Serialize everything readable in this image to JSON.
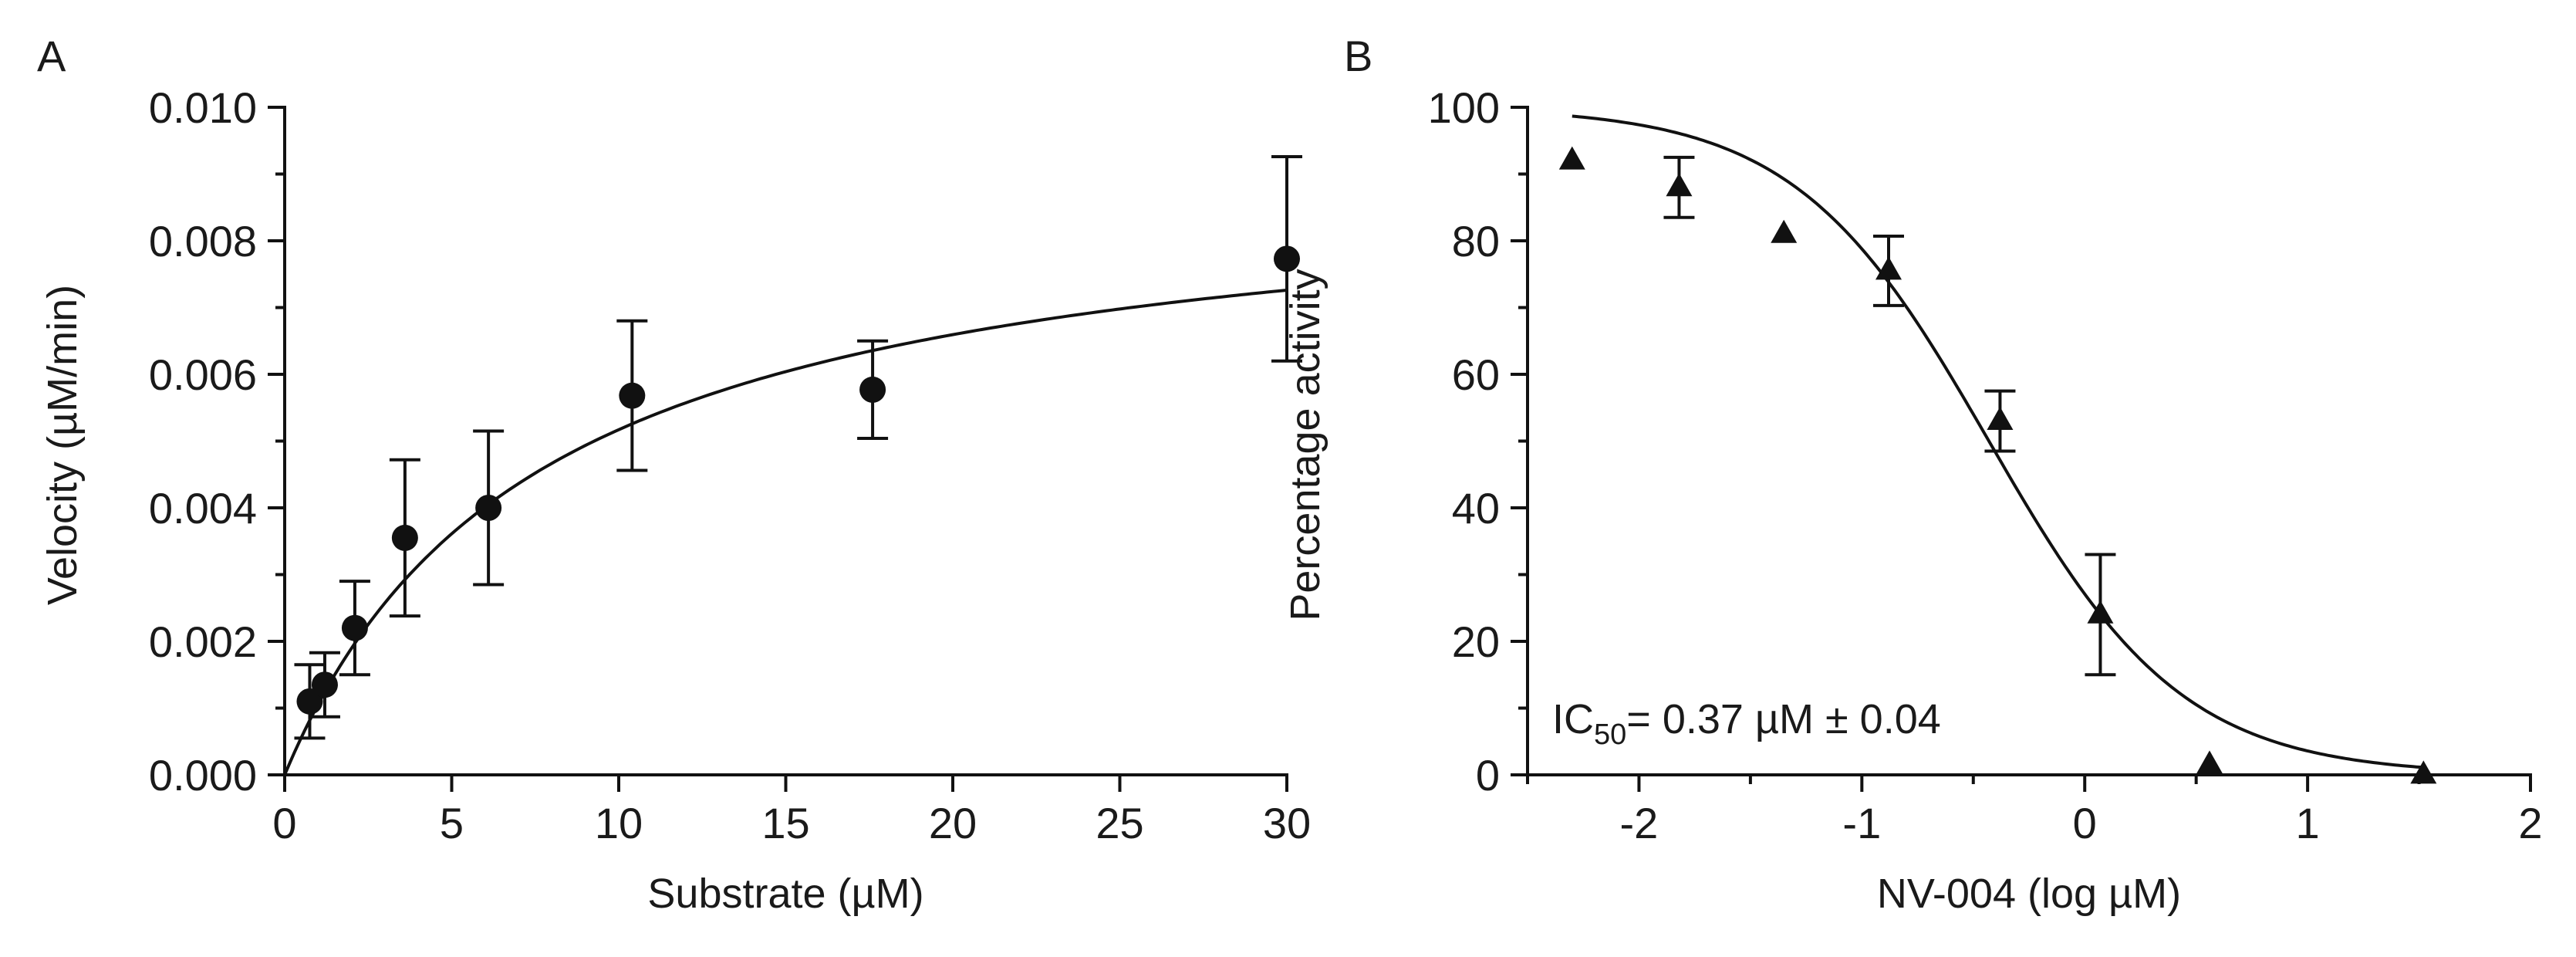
{
  "chart_data": [
    {
      "panel": "A",
      "type": "scatter",
      "xlabel": "Substrate (µM)",
      "ylabel": "Velocity (µM/min)",
      "xlim": [
        0,
        30
      ],
      "ylim": [
        0,
        0.01
      ],
      "xticks": [
        0,
        5,
        10,
        15,
        20,
        25,
        30
      ],
      "xtick_labels": [
        "0",
        "5",
        "10",
        "15",
        "20",
        "25",
        "30"
      ],
      "yticks": [
        0.0,
        0.002,
        0.004,
        0.006,
        0.008,
        0.01
      ],
      "ytick_labels": [
        "0.000",
        "0.002",
        "0.004",
        "0.006",
        "0.008",
        "0.010"
      ],
      "grid": false,
      "series": [
        {
          "name": "Velocity",
          "marker": "circle",
          "x": [
            0.75,
            1.2,
            2.1,
            3.6,
            6.1,
            10.4,
            17.6,
            30.0
          ],
          "y": [
            0.0011,
            0.00135,
            0.0022,
            0.00355,
            0.004,
            0.00568,
            0.00577,
            0.00773
          ],
          "err": [
            0.00055,
            0.00048,
            0.0007,
            0.00117,
            0.00115,
            0.00112,
            0.00073,
            0.00153
          ]
        }
      ],
      "fit": {
        "model": "michaelis-menten",
        "vmax": 0.0091,
        "km": 7.6
      }
    },
    {
      "panel": "B",
      "type": "scatter",
      "xlabel": "NV-004 (log µM)",
      "ylabel": "Percentage activity",
      "xlim": [
        -2.5,
        2
      ],
      "ylim": [
        0,
        100
      ],
      "xticks": [
        -2,
        -1,
        0,
        1,
        2
      ],
      "xtick_labels": [
        "-2",
        "-1",
        "0",
        "1",
        "2"
      ],
      "yticks": [
        0,
        20,
        40,
        60,
        80,
        100
      ],
      "ytick_labels": [
        "0",
        "20",
        "40",
        "60",
        "80",
        "100"
      ],
      "grid": false,
      "series": [
        {
          "name": "Percentage activity",
          "marker": "triangle",
          "x": [
            -2.3,
            -1.82,
            -1.35,
            -0.88,
            -0.38,
            0.07,
            0.56,
            1.52
          ],
          "y": [
            92,
            88,
            81,
            75.5,
            53,
            24,
            1.5,
            0
          ],
          "err": [
            0,
            4.5,
            0,
            5.2,
            4.5,
            9,
            0,
            0
          ]
        }
      ],
      "fit": {
        "model": "sigmoid",
        "top": 100,
        "bottom": 0,
        "logIC50": -0.43,
        "hill": 1.0,
        "xstart": -2.3,
        "xend": 1.52
      },
      "baseline": {
        "y": 0,
        "style": "dotted"
      },
      "annotation": {
        "prefix": "IC",
        "subscript": "50",
        "suffix": "= 0.37 µM ± 0.04"
      }
    }
  ]
}
